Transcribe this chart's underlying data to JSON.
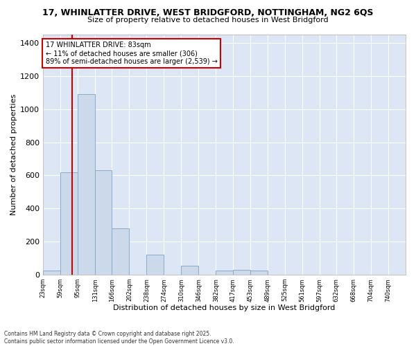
{
  "title_line1": "17, WHINLATTER DRIVE, WEST BRIDGFORD, NOTTINGHAM, NG2 6QS",
  "title_line2": "Size of property relative to detached houses in West Bridgford",
  "xlabel": "Distribution of detached houses by size in West Bridgford",
  "ylabel": "Number of detached properties",
  "bar_color": "#ccd9ea",
  "bar_edge_color": "#8aaac8",
  "bg_color": "#dce6f5",
  "grid_color": "#ffffff",
  "annotation_box_color": "#cc0000",
  "vline_color": "#cc0000",
  "vline_x": 83,
  "categories": [
    "23sqm",
    "59sqm",
    "95sqm",
    "131sqm",
    "166sqm",
    "202sqm",
    "238sqm",
    "274sqm",
    "310sqm",
    "346sqm",
    "382sqm",
    "417sqm",
    "453sqm",
    "489sqm",
    "525sqm",
    "561sqm",
    "597sqm",
    "632sqm",
    "668sqm",
    "704sqm",
    "740sqm"
  ],
  "bin_edges": [
    23,
    59,
    95,
    131,
    166,
    202,
    238,
    274,
    310,
    346,
    382,
    417,
    453,
    489,
    525,
    561,
    597,
    632,
    668,
    704,
    740,
    776
  ],
  "values": [
    25,
    620,
    1090,
    630,
    280,
    0,
    120,
    0,
    55,
    0,
    25,
    30,
    25,
    0,
    0,
    0,
    0,
    0,
    0,
    0,
    0
  ],
  "annotation_text": "17 WHINLATTER DRIVE: 83sqm\n← 11% of detached houses are smaller (306)\n89% of semi-detached houses are larger (2,539) →",
  "footnote1": "Contains HM Land Registry data © Crown copyright and database right 2025.",
  "footnote2": "Contains public sector information licensed under the Open Government Licence v3.0.",
  "ylim": [
    0,
    1450
  ],
  "yticks": [
    0,
    200,
    400,
    600,
    800,
    1000,
    1200,
    1400
  ]
}
